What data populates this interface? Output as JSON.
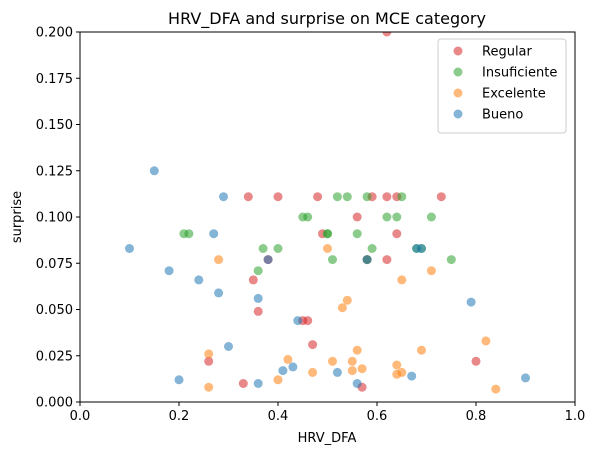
{
  "chart_data": {
    "type": "scatter",
    "title": "HRV_DFA and surprise on MCE category",
    "xlabel": "HRV_DFA",
    "ylabel": "surprise",
    "xlim": [
      0.0,
      1.0
    ],
    "ylim": [
      0.0,
      0.2
    ],
    "xticks": [
      "0.0",
      "0.2",
      "0.4",
      "0.6",
      "0.8",
      "1.0"
    ],
    "yticks": [
      "0.000",
      "0.025",
      "0.050",
      "0.075",
      "0.100",
      "0.125",
      "0.150",
      "0.175",
      "0.200"
    ],
    "legend_position": "top-right",
    "grid": false,
    "series": [
      {
        "name": "Regular",
        "color": "#d62728",
        "points": [
          [
            0.62,
            0.2
          ],
          [
            0.34,
            0.111
          ],
          [
            0.4,
            0.111
          ],
          [
            0.48,
            0.111
          ],
          [
            0.59,
            0.111
          ],
          [
            0.62,
            0.111
          ],
          [
            0.64,
            0.111
          ],
          [
            0.73,
            0.111
          ],
          [
            0.56,
            0.1
          ],
          [
            0.49,
            0.091
          ],
          [
            0.64,
            0.091
          ],
          [
            0.38,
            0.077
          ],
          [
            0.58,
            0.077
          ],
          [
            0.62,
            0.077
          ],
          [
            0.35,
            0.066
          ],
          [
            0.36,
            0.049
          ],
          [
            0.45,
            0.044
          ],
          [
            0.46,
            0.044
          ],
          [
            0.47,
            0.031
          ],
          [
            0.26,
            0.022
          ],
          [
            0.8,
            0.022
          ],
          [
            0.33,
            0.01
          ],
          [
            0.57,
            0.008
          ]
        ]
      },
      {
        "name": "Insuficiente",
        "color": "#2ca02c",
        "points": [
          [
            0.52,
            0.111
          ],
          [
            0.54,
            0.111
          ],
          [
            0.58,
            0.111
          ],
          [
            0.65,
            0.111
          ],
          [
            0.45,
            0.1
          ],
          [
            0.46,
            0.1
          ],
          [
            0.62,
            0.1
          ],
          [
            0.64,
            0.1
          ],
          [
            0.71,
            0.1
          ],
          [
            0.21,
            0.091
          ],
          [
            0.22,
            0.091
          ],
          [
            0.5,
            0.091
          ],
          [
            0.5,
            0.091
          ],
          [
            0.56,
            0.091
          ],
          [
            0.37,
            0.083
          ],
          [
            0.4,
            0.083
          ],
          [
            0.59,
            0.083
          ],
          [
            0.68,
            0.083
          ],
          [
            0.69,
            0.083
          ],
          [
            0.51,
            0.077
          ],
          [
            0.58,
            0.077
          ],
          [
            0.75,
            0.077
          ],
          [
            0.36,
            0.071
          ]
        ]
      },
      {
        "name": "Excelente",
        "color": "#ff7f0e",
        "points": [
          [
            0.5,
            0.083
          ],
          [
            0.28,
            0.077
          ],
          [
            0.71,
            0.071
          ],
          [
            0.65,
            0.066
          ],
          [
            0.54,
            0.055
          ],
          [
            0.53,
            0.051
          ],
          [
            0.82,
            0.033
          ],
          [
            0.69,
            0.028
          ],
          [
            0.56,
            0.028
          ],
          [
            0.26,
            0.026
          ],
          [
            0.42,
            0.023
          ],
          [
            0.51,
            0.022
          ],
          [
            0.55,
            0.022
          ],
          [
            0.64,
            0.02
          ],
          [
            0.55,
            0.017
          ],
          [
            0.57,
            0.018
          ],
          [
            0.47,
            0.016
          ],
          [
            0.64,
            0.015
          ],
          [
            0.65,
            0.016
          ],
          [
            0.4,
            0.012
          ],
          [
            0.26,
            0.008
          ],
          [
            0.84,
            0.007
          ]
        ]
      },
      {
        "name": "Bueno",
        "color": "#1f77b4",
        "points": [
          [
            0.15,
            0.125
          ],
          [
            0.29,
            0.111
          ],
          [
            0.1,
            0.083
          ],
          [
            0.27,
            0.091
          ],
          [
            0.68,
            0.083
          ],
          [
            0.69,
            0.083
          ],
          [
            0.38,
            0.077
          ],
          [
            0.58,
            0.077
          ],
          [
            0.18,
            0.071
          ],
          [
            0.24,
            0.066
          ],
          [
            0.28,
            0.059
          ],
          [
            0.36,
            0.056
          ],
          [
            0.79,
            0.054
          ],
          [
            0.44,
            0.044
          ],
          [
            0.3,
            0.03
          ],
          [
            0.43,
            0.019
          ],
          [
            0.41,
            0.017
          ],
          [
            0.52,
            0.016
          ],
          [
            0.67,
            0.014
          ],
          [
            0.9,
            0.013
          ],
          [
            0.2,
            0.012
          ],
          [
            0.36,
            0.01
          ],
          [
            0.56,
            0.01
          ]
        ]
      }
    ]
  }
}
